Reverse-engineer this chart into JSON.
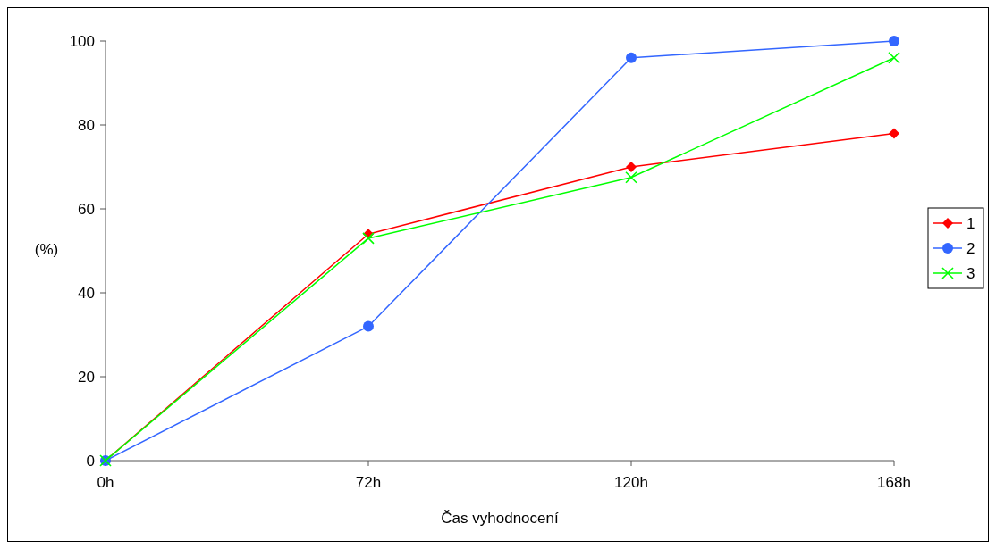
{
  "chart_data": {
    "type": "line",
    "xlabel": "Čas vyhodnocení",
    "ylabel": "(%)",
    "categories": [
      "0h",
      "72h",
      "120h",
      "168h"
    ],
    "series": [
      {
        "name": "1",
        "color": "#ff0000",
        "marker": "diamond",
        "values": [
          0,
          54,
          70,
          78
        ]
      },
      {
        "name": "2",
        "color": "#3366ff",
        "marker": "circle",
        "values": [
          0,
          32,
          96,
          100
        ]
      },
      {
        "name": "3",
        "color": "#00ff00",
        "marker": "cross",
        "values": [
          0,
          53,
          67.5,
          96
        ]
      }
    ],
    "ylim": [
      0,
      100
    ],
    "yticks": [
      0,
      20,
      40,
      60,
      80,
      100
    ],
    "grid": false,
    "legend": "right",
    "line_style": "solid"
  }
}
